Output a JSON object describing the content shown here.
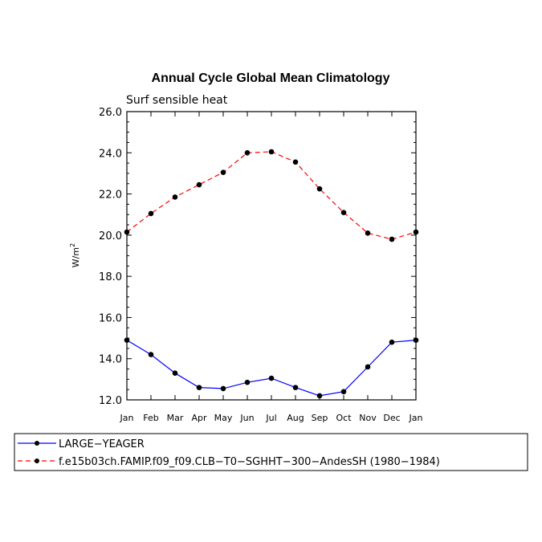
{
  "chart_data": {
    "type": "line",
    "title": "Annual Cycle Global Mean Climatology",
    "subtitle": "Surf sensible heat",
    "ylabel": "W/m",
    "ylabel_sup": "2",
    "ylim": [
      12.0,
      26.0
    ],
    "yticks": [
      "12.0",
      "14.0",
      "16.0",
      "18.0",
      "20.0",
      "22.0",
      "24.0",
      "26.0"
    ],
    "ytick_values": [
      12,
      14,
      16,
      18,
      20,
      22,
      24,
      26
    ],
    "categories": [
      "Jan",
      "Feb",
      "Mar",
      "Apr",
      "May",
      "Jun",
      "Jul",
      "Aug",
      "Sep",
      "Oct",
      "Nov",
      "Dec",
      "Jan"
    ],
    "grid": false,
    "legend_placement": "below",
    "series": [
      {
        "name": "LARGE−YEAGER",
        "color": "#0000ff",
        "dash": "solid",
        "values": [
          14.9,
          14.2,
          13.3,
          12.6,
          12.55,
          12.85,
          13.05,
          12.6,
          12.2,
          12.4,
          13.6,
          14.8,
          14.9
        ]
      },
      {
        "name": "f.e15b03ch.FAMIP.f09_f09.CLB−T0−SGHHT−300−AndesSH (1980−1984)",
        "color": "#ff0000",
        "dash": "dashed",
        "values": [
          20.15,
          21.05,
          21.85,
          22.45,
          23.05,
          24.0,
          24.05,
          23.55,
          22.25,
          21.1,
          20.1,
          19.8,
          20.15
        ]
      }
    ]
  }
}
